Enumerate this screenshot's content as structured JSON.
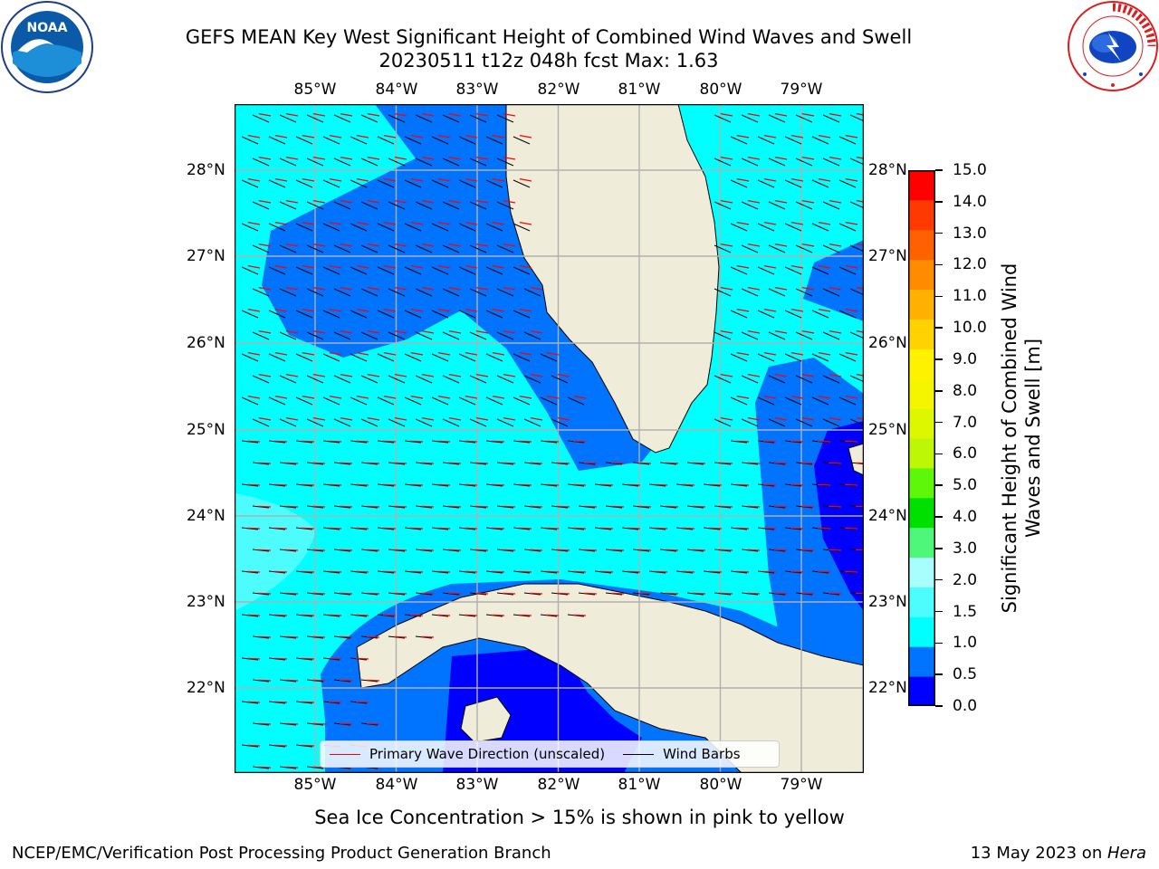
{
  "title": {
    "line1": "GEFS MEAN Key West Significant Height of Combined Wind Waves and Swell",
    "line2": "20230511 t12z 048h fcst   Max: 1.63"
  },
  "logos": {
    "left": "NOAA",
    "left_ring": "NATIONAL OCEANIC AND ATMOSPHERIC ADMINISTRATION · U.S. DEPARTMENT OF COMMERCE",
    "right_ring": "NATIONAL WEATHER SERVICE"
  },
  "map": {
    "lon_labels": [
      "85°W",
      "84°W",
      "83°W",
      "82°W",
      "81°W",
      "80°W",
      "79°W"
    ],
    "lat_labels": [
      "28°N",
      "27°N",
      "26°N",
      "25°N",
      "24°N",
      "23°N",
      "22°N"
    ],
    "colors": {
      "land": "#efedd9",
      "lt_0_5": "#0000ff",
      "c0_5_1": "#0073ff",
      "c1_1_5": "#00ffff",
      "c1_5_2": "#4dfcfc",
      "grid": "#b0b0b0",
      "wave_arrow": "#ff0000",
      "barb": "#000000"
    }
  },
  "legend": {
    "wave": "Primary Wave Direction (unscaled)",
    "barb": "Wind Barbs"
  },
  "colorbar": {
    "label": "Significant Height of Combined Wind Waves and Swell [m]",
    "ticks": [
      "15.0",
      "14.0",
      "13.0",
      "12.0",
      "11.0",
      "10.0",
      "9.0",
      "8.0",
      "7.0",
      "6.0",
      "5.0",
      "4.0",
      "3.0",
      "2.0",
      "1.5",
      "1.0",
      "0.5",
      "0.0"
    ],
    "colors": [
      "#0000ff",
      "#0073ff",
      "#00ffff",
      "#4dfcfc",
      "#a8fdfd",
      "#4ef77a",
      "#00e000",
      "#5ef70a",
      "#bef705",
      "#dcf700",
      "#f5f500",
      "#fff200",
      "#ffd200",
      "#ffb000",
      "#ff8c00",
      "#ff6000",
      "#ff3a00",
      "#ff0000"
    ]
  },
  "subtitle": "Sea Ice Concentration > 15% is shown in pink to yellow",
  "footer": {
    "left": "NCEP/EMC/Verification Post Processing Product Generation Branch",
    "right_prefix": "13 May 2023 on ",
    "right_host": "Hera"
  }
}
